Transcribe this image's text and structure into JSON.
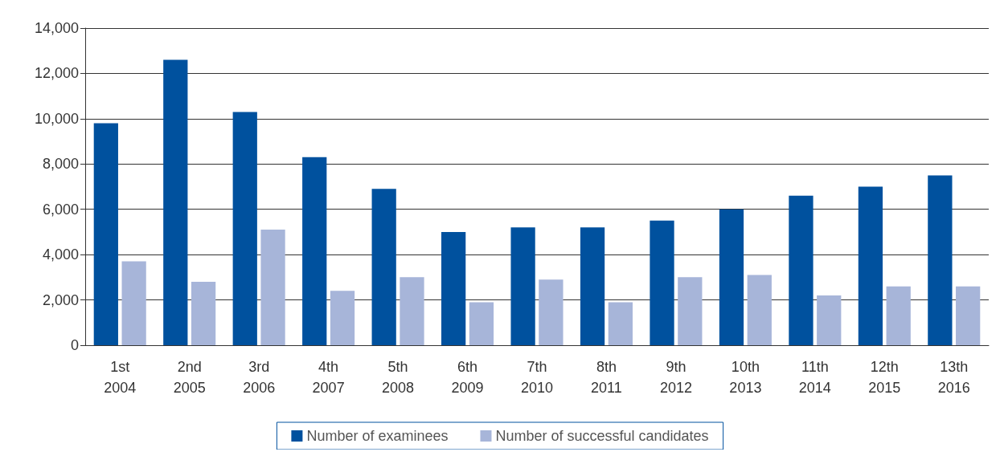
{
  "chart_data": {
    "type": "bar",
    "categories": [
      "1st\n2004",
      "2nd\n2005",
      "3rd\n2006",
      "4th\n2007",
      "5th\n2008",
      "6th\n2009",
      "7th\n2010",
      "8th\n2011",
      "9th\n2012",
      "10th\n2013",
      "11th\n2014",
      "12th\n2015",
      "13th\n2016"
    ],
    "series": [
      {
        "name": "Number of examinees",
        "color": "#00519e",
        "values": [
          9800,
          12600,
          10300,
          8300,
          6900,
          5000,
          5200,
          5200,
          5500,
          6000,
          6600,
          7000,
          7500
        ]
      },
      {
        "name": "Number of successful candidates",
        "color": "#a7b5d9",
        "values": [
          3700,
          2800,
          5100,
          2400,
          3000,
          1900,
          2900,
          1900,
          3000,
          3100,
          2200,
          2600,
          2600
        ]
      }
    ],
    "ylim": [
      0,
      14000
    ],
    "yticks": [
      0,
      {
        "value": 2000,
        "label": "2,000"
      },
      {
        "value": 4000,
        "label": "4,000"
      },
      {
        "value": 6000,
        "label": "6,000"
      },
      {
        "value": 8000,
        "label": "8,000"
      },
      {
        "value": 10000,
        "label": "10,000"
      },
      {
        "value": 12000,
        "label": "12,000"
      },
      {
        "value": 14000,
        "label": "14,000"
      }
    ],
    "grid": "y",
    "legend": "bottom"
  }
}
